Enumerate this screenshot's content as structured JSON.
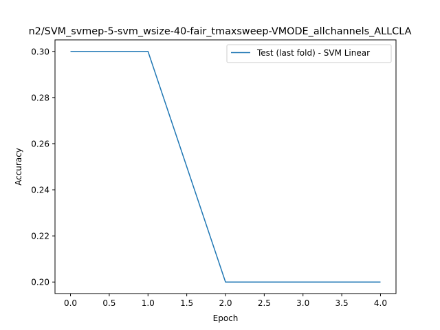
{
  "chart_data": {
    "type": "line",
    "title": "n2/SVM_svmep-5-svm_wsize-40-fair_tmaxsweep-VMODE_allchannels_ALLCLA",
    "xlabel": "Epoch",
    "ylabel": "Accuracy",
    "xlim": [
      -0.2,
      4.2
    ],
    "ylim": [
      0.195,
      0.305
    ],
    "xticks": [
      0.0,
      0.5,
      1.0,
      1.5,
      2.0,
      2.5,
      3.0,
      3.5,
      4.0
    ],
    "xtick_labels": [
      "0.0",
      "0.5",
      "1.0",
      "1.5",
      "2.0",
      "2.5",
      "3.0",
      "3.5",
      "4.0"
    ],
    "yticks": [
      0.2,
      0.22,
      0.24,
      0.26,
      0.28,
      0.3
    ],
    "ytick_labels": [
      "0.20",
      "0.22",
      "0.24",
      "0.26",
      "0.28",
      "0.30"
    ],
    "grid": false,
    "legend_position": "top-right",
    "series": [
      {
        "name": "Test (last fold) - SVM Linear",
        "color": "#1f77b4",
        "x": [
          0,
          1,
          2,
          3,
          4
        ],
        "y": [
          0.3,
          0.3,
          0.2,
          0.2,
          0.2
        ]
      }
    ]
  }
}
